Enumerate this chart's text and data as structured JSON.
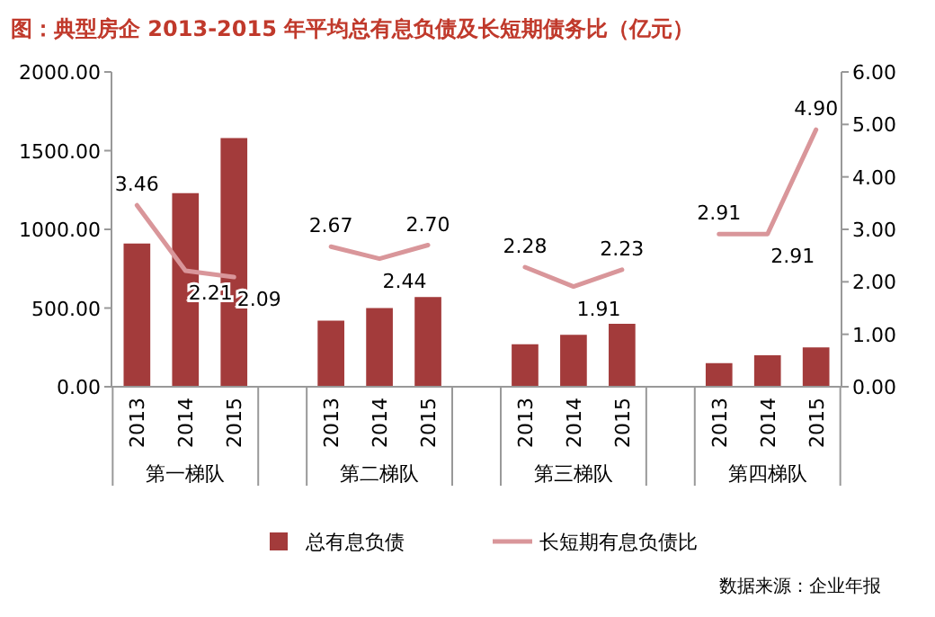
{
  "chart_data": {
    "type": "bar",
    "title": "图：典型房企 2013-2015 年平均总有息负债及长短期债务比（亿元）",
    "categories": [
      "2013",
      "2014",
      "2015",
      null,
      "2013",
      "2014",
      "2015",
      null,
      "2013",
      "2014",
      "2015",
      null,
      "2013",
      "2014",
      "2015"
    ],
    "series": [
      {
        "name": "总有息负债",
        "color": "#a33b3b",
        "values": [
          910,
          1230,
          1580,
          null,
          420,
          500,
          570,
          null,
          270,
          330,
          400,
          null,
          150,
          200,
          250
        ]
      },
      {
        "name": "长短期有息负债比",
        "type": "line",
        "axis": "y2",
        "color": "#d9969a",
        "values": [
          3.46,
          2.21,
          2.09,
          null,
          2.67,
          2.44,
          2.7,
          null,
          2.28,
          1.91,
          2.23,
          null,
          2.91,
          2.91,
          4.9
        ],
        "value_labels": [
          "3.46",
          "2.21",
          "2.09",
          null,
          "2.67",
          "2.44",
          "2.70",
          null,
          "2.28",
          "1.91",
          "2.23",
          null,
          "2.91",
          "2.91",
          "4.90"
        ]
      }
    ],
    "ylim": [
      0,
      2000
    ],
    "yticks": [
      {
        "value": 0,
        "label": "0.00"
      },
      {
        "value": 500,
        "label": "500.00"
      },
      {
        "value": 1000,
        "label": "1000.00"
      },
      {
        "value": 1500,
        "label": "1500.00"
      },
      {
        "value": 2000,
        "label": "2000.00"
      }
    ],
    "y2lim": [
      0,
      6
    ],
    "y2ticks": [
      {
        "value": 0,
        "label": "0.00"
      },
      {
        "value": 1,
        "label": "1.00"
      },
      {
        "value": 2,
        "label": "2.00"
      },
      {
        "value": 3,
        "label": "3.00"
      },
      {
        "value": 4,
        "label": "4.00"
      },
      {
        "value": 5,
        "label": "5.00"
      },
      {
        "value": 6,
        "label": "6.00"
      }
    ],
    "annotations": [
      "第一梯队",
      "第二梯队",
      "第三梯队",
      "第四梯队",
      "数据来源：企业年报"
    ],
    "grid": false,
    "legend": "bottom"
  }
}
